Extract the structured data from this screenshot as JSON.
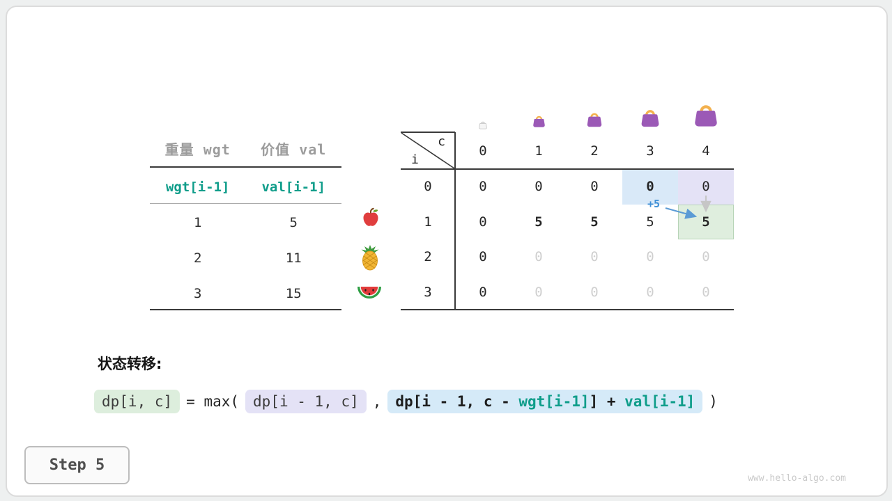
{
  "page": {
    "step_label": "Step 5",
    "watermark": "www.hello-algo.com"
  },
  "items_table": {
    "headers": [
      "重量 wgt",
      "价值 val"
    ],
    "index_row": [
      "wgt[i-1]",
      "val[i-1]"
    ],
    "rows": [
      {
        "wgt": "1",
        "val": "5",
        "icon": "apple-icon"
      },
      {
        "wgt": "2",
        "val": "11",
        "icon": "pineapple-icon"
      },
      {
        "wgt": "3",
        "val": "15",
        "icon": "watermelon-icon"
      }
    ]
  },
  "dp_table": {
    "corner_top": "c",
    "corner_side": "i",
    "col_headers": [
      "0",
      "1",
      "2",
      "3",
      "4"
    ],
    "row_headers": [
      "0",
      "1",
      "2",
      "3"
    ],
    "bags": [
      "handbag-icon-ghost",
      "handbag-icon-xs",
      "handbag-icon-small",
      "handbag-icon-medium",
      "handbag-icon-large"
    ],
    "rows": [
      [
        {
          "v": "0"
        },
        {
          "v": "0"
        },
        {
          "v": "0"
        },
        {
          "v": "0",
          "bold": true,
          "hl": "blue"
        },
        {
          "v": "0",
          "hl": "lavender"
        }
      ],
      [
        {
          "v": "0"
        },
        {
          "v": "5",
          "bold": true
        },
        {
          "v": "5",
          "bold": true
        },
        {
          "v": "5"
        },
        {
          "v": "5",
          "bold": true,
          "hl": "green"
        }
      ],
      [
        {
          "v": "0"
        },
        {
          "v": "0",
          "faded": true
        },
        {
          "v": "0",
          "faded": true
        },
        {
          "v": "0",
          "faded": true
        },
        {
          "v": "0",
          "faded": true
        }
      ],
      [
        {
          "v": "0"
        },
        {
          "v": "0",
          "faded": true
        },
        {
          "v": "0",
          "faded": true
        },
        {
          "v": "0",
          "faded": true
        },
        {
          "v": "0",
          "faded": true
        }
      ]
    ],
    "annotation": "+5"
  },
  "formula": {
    "title": "状态转移:",
    "lhs": "dp[i, c]",
    "eq_max": "= max(",
    "opt1": "dp[i - 1, c]",
    "comma": ",",
    "opt2": [
      "dp[i - 1, c - ",
      "wgt[i-1]",
      "] + ",
      "val[i-1]"
    ],
    "close": ")"
  },
  "colors": {
    "teal": "#0f9d8a",
    "purple": "#9b59b6",
    "handle": "#f3b14e",
    "arrow-blue": "#5b9bd5",
    "hl-blue": "#d9e9f8",
    "hl-lavender": "#e4e2f6",
    "hl-green": "#dfeede",
    "chip-green": "#ddeedd",
    "chip-lavender": "#e4e2f6",
    "chip-blue": "#d5eaf8"
  }
}
